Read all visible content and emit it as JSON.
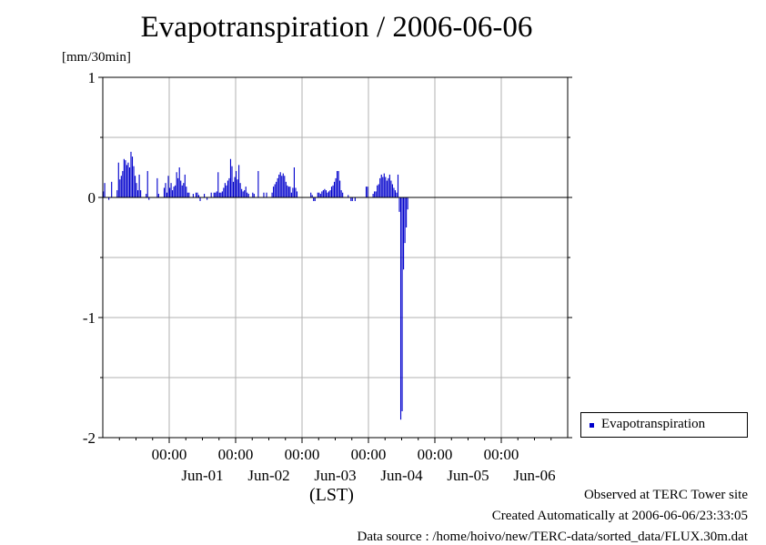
{
  "colors": {
    "series": "#0000cc",
    "grid": "#b0b0b0"
  },
  "footer": {
    "line1": "Observed at TERC Tower site",
    "line2": "Created Automatically at 2006-06-06/23:33:05",
    "line3": "Data source : /home/hoivo/new/TERC-data/sorted_data/FLUX.30m.dat"
  },
  "chart_data": {
    "type": "bar",
    "title": "Evapotranspiration / 2006-06-06",
    "ylabel": "[mm/30min]",
    "xlabel": "(LST)",
    "ylim": [
      -2,
      1
    ],
    "yticks": [
      -2,
      -1,
      0,
      1
    ],
    "yticklabels": [
      "-2",
      "-1",
      "0",
      "1"
    ],
    "xlim": [
      "2006-05-31 00:00",
      "2006-06-07 00:00"
    ],
    "xticks": [
      "2006-06-01 00:00",
      "2006-06-02 00:00",
      "2006-06-03 00:00",
      "2006-06-04 00:00",
      "2006-06-05 00:00",
      "2006-06-06 00:00"
    ],
    "xticklabels_time": [
      "00:00",
      "00:00",
      "00:00",
      "00:00",
      "00:00",
      "00:00"
    ],
    "xticklabels_date": [
      "Jun-01",
      "Jun-02",
      "Jun-03",
      "Jun-04",
      "Jun-05",
      "Jun-06"
    ],
    "grid": true,
    "legend_position": "bottom-right outside",
    "series": [
      {
        "name": "Evapotranspiration",
        "x_start": "2006-05-31 00:00",
        "interval_minutes": 30,
        "values": [
          0.05,
          0.12,
          0,
          0,
          -0.02,
          0,
          0.13,
          0,
          0,
          0,
          0.06,
          0.29,
          0.15,
          0.18,
          0.22,
          0.32,
          0.31,
          0.27,
          0.29,
          0.25,
          0.38,
          0.34,
          0.26,
          0.18,
          0.12,
          0.06,
          0.19,
          0.06,
          0,
          0,
          0,
          0.03,
          0.22,
          -0.02,
          0,
          0,
          0,
          0,
          0,
          0.16,
          0.03,
          0,
          0,
          0,
          0.08,
          0.12,
          0.04,
          0.18,
          0.08,
          0.12,
          0.06,
          0.09,
          0.1,
          0.21,
          0.16,
          0.25,
          0.14,
          0.1,
          0.12,
          0.19,
          0.09,
          0.04,
          0.04,
          0,
          0,
          0.03,
          0,
          0.04,
          0.04,
          0.02,
          -0.03,
          0,
          0,
          0.03,
          0,
          -0.02,
          0,
          0,
          0.04,
          0,
          0.04,
          0.04,
          0.05,
          0.21,
          0.04,
          0.04,
          0.05,
          0.08,
          0.12,
          0.1,
          0.14,
          0.16,
          0.32,
          0.26,
          0.13,
          0.17,
          0.22,
          0.15,
          0.27,
          0.12,
          0.07,
          0.05,
          0.06,
          0.09,
          0.04,
          0.03,
          0,
          0,
          0.04,
          0.03,
          0,
          0,
          0.22,
          0,
          0,
          0,
          0.04,
          0,
          0.04,
          0,
          0,
          0,
          0.04,
          0.09,
          0.11,
          0.13,
          0.16,
          0.19,
          0.21,
          0.18,
          0.2,
          0.18,
          0.13,
          0.1,
          0.09,
          0.09,
          0.04,
          0.08,
          0.25,
          0.08,
          0.05,
          0,
          0,
          0,
          0,
          0,
          0,
          0,
          0,
          0,
          0.04,
          0.02,
          -0.03,
          -0.03,
          0,
          0.04,
          0.04,
          0.03,
          0.05,
          0.06,
          0.07,
          0.06,
          0.04,
          0.05,
          0.06,
          0.09,
          0.1,
          0.13,
          0.16,
          0.22,
          0.22,
          0.14,
          0.06,
          0.04,
          0,
          0,
          0,
          0.02,
          0,
          -0.03,
          -0.03,
          0,
          -0.03,
          0,
          0,
          0,
          0,
          0,
          0,
          0,
          0.09,
          0.09,
          0,
          0,
          0,
          0.03,
          0.05,
          0.05,
          0.1,
          0.11,
          0.16,
          0.19,
          0.17,
          0.2,
          0.17,
          0.14,
          0.16,
          0.19,
          0.14,
          0.11,
          0.08,
          0.06,
          0.04,
          0.19,
          -0.12,
          -1.85,
          -1.78,
          -0.6,
          -0.38,
          -0.25,
          -0.1
        ]
      }
    ]
  }
}
